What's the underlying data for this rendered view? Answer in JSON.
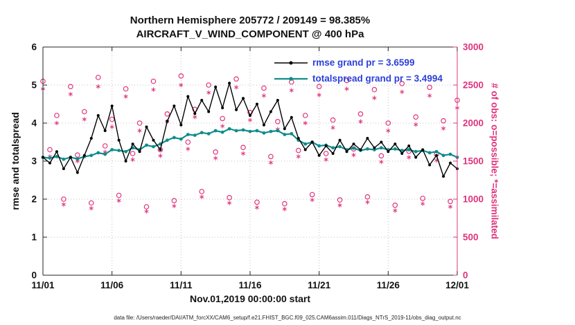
{
  "title": {
    "line1": "Northern Hemisphere 205772 / 209149 = 98.385%",
    "line2": "AIRCRAFT_V_WIND_COMPONENT @ 400 hPa"
  },
  "axes": {
    "left_label": "rmse and totalspread",
    "right_label": "# of obs: o=possible; *=assimilated",
    "x_label": "Nov.01,2019 00:00:00 start",
    "x_tick_labels": [
      "11/01",
      "11/06",
      "11/11",
      "11/16",
      "11/21",
      "11/26",
      "12/01"
    ],
    "x_tick_values": [
      0,
      5,
      10,
      15,
      20,
      25,
      30
    ],
    "left_ticks": [
      0,
      1,
      2,
      3,
      4,
      5,
      6
    ],
    "right_ticks": [
      0,
      500,
      1000,
      1500,
      2000,
      2500,
      3000
    ]
  },
  "legend": {
    "items": [
      {
        "label": "rmse grand pr = 3.6599",
        "series": "rmse"
      },
      {
        "label": "totalspread grand pr = 3.4994",
        "series": "totalspread"
      }
    ]
  },
  "caption": "data file: /Users/raeder/DAI/ATM_forcXX/CAM6_setup/f.e21.FHIST_BGC.f09_025.CAM6assim.011/Diags_NTrS_2019-11/obs_diag_output.nc",
  "colors": {
    "rmse": "#000000",
    "totalspread": "#108b8b",
    "obs": "#e0337c",
    "legend_text": "#2b3fd9",
    "grid": "#c0c0c0",
    "axis": "#222222"
  },
  "chart_data": {
    "type": "line",
    "title": "Northern Hemisphere 205772 / 209149 = 98.385% | AIRCRAFT_V_WIND_COMPONENT @ 400 hPa",
    "xlabel": "Nov.01,2019 00:00:00 start",
    "ylabel_left": "rmse and totalspread",
    "ylabel_right": "# of obs: o=possible; *=assimilated",
    "x_range_days": [
      0,
      30
    ],
    "left_ylim": [
      0,
      6
    ],
    "right_ylim": [
      0,
      3000
    ],
    "grid": true,
    "legend_position": "top-center-inside",
    "x_days": [
      0,
      0.5,
      1,
      1.5,
      2,
      2.5,
      3,
      3.5,
      4,
      4.5,
      5,
      5.5,
      6,
      6.5,
      7,
      7.5,
      8,
      8.5,
      9,
      9.5,
      10,
      10.5,
      11,
      11.5,
      12,
      12.5,
      13,
      13.5,
      14,
      14.5,
      15,
      15.5,
      16,
      16.5,
      17,
      17.5,
      18,
      18.5,
      19,
      19.5,
      20,
      20.5,
      21,
      21.5,
      22,
      22.5,
      23,
      23.5,
      24,
      24.5,
      25,
      25.5,
      26,
      26.5,
      27,
      27.5,
      28,
      28.5,
      29,
      29.5,
      30
    ],
    "series": [
      {
        "name": "rmse",
        "axis": "left",
        "marker": "dot",
        "grand_mean": 3.6599,
        "values": [
          3.1,
          2.95,
          3.25,
          2.8,
          3.1,
          2.7,
          3.15,
          3.6,
          4.2,
          3.8,
          4.45,
          3.55,
          3.0,
          3.45,
          3.25,
          3.9,
          3.55,
          3.3,
          4.05,
          4.45,
          3.95,
          4.7,
          4.25,
          4.6,
          4.3,
          4.95,
          4.4,
          5.05,
          4.35,
          4.65,
          4.2,
          4.5,
          3.95,
          4.3,
          4.6,
          3.85,
          4.15,
          3.6,
          3.3,
          3.5,
          3.15,
          3.4,
          3.2,
          3.55,
          3.25,
          3.45,
          3.3,
          3.6,
          3.35,
          3.5,
          3.25,
          3.45,
          3.2,
          3.4,
          3.1,
          3.3,
          2.9,
          3.15,
          2.6,
          2.95,
          2.8
        ]
      },
      {
        "name": "totalspread",
        "axis": "left",
        "marker": "dot",
        "grand_mean": 3.4994,
        "values": [
          3.1,
          3.08,
          3.12,
          3.05,
          3.1,
          3.06,
          3.12,
          3.15,
          3.22,
          3.18,
          3.3,
          3.28,
          3.25,
          3.35,
          3.3,
          3.42,
          3.38,
          3.45,
          3.55,
          3.62,
          3.58,
          3.7,
          3.68,
          3.75,
          3.72,
          3.8,
          3.76,
          3.85,
          3.8,
          3.82,
          3.78,
          3.8,
          3.74,
          3.78,
          3.8,
          3.7,
          3.72,
          3.55,
          3.45,
          3.5,
          3.4,
          3.42,
          3.35,
          3.38,
          3.3,
          3.34,
          3.28,
          3.32,
          3.3,
          3.35,
          3.3,
          3.32,
          3.28,
          3.3,
          3.25,
          3.28,
          3.22,
          3.25,
          3.15,
          3.18,
          3.1
        ]
      },
      {
        "name": "possible_obs",
        "axis": "right",
        "marker": "circle",
        "values": [
          2550,
          1650,
          2100,
          1000,
          2480,
          1580,
          2150,
          950,
          2600,
          1700,
          2050,
          1050,
          2450,
          1600,
          2000,
          900,
          2550,
          1650,
          2120,
          980,
          2620,
          1750,
          2180,
          1100,
          2500,
          1620,
          2060,
          1020,
          2580,
          1680,
          2140,
          960,
          2460,
          1560,
          2020,
          940,
          2540,
          1640,
          2100,
          1060,
          2480,
          1600,
          2040,
          990,
          2560,
          1660,
          2120,
          1030,
          2440,
          1570,
          2000,
          920,
          2520,
          1630,
          2080,
          1010,
          2470,
          1590,
          2030,
          970,
          2300
        ]
      },
      {
        "name": "assimilated_obs",
        "axis": "right",
        "marker": "asterisk",
        "values": [
          2450,
          1560,
          2000,
          930,
          2380,
          1500,
          2050,
          880,
          2480,
          1620,
          1950,
          980,
          2350,
          1520,
          1900,
          840,
          2440,
          1570,
          2020,
          910,
          2500,
          1660,
          2080,
          1030,
          2400,
          1540,
          1960,
          950,
          2470,
          1600,
          2040,
          890,
          2360,
          1480,
          1920,
          870,
          2430,
          1560,
          2000,
          990,
          2370,
          1520,
          1940,
          920,
          2450,
          1580,
          2020,
          960,
          2330,
          1490,
          1900,
          850,
          2410,
          1550,
          1980,
          940,
          2360,
          1510,
          1930,
          900,
          2200
        ]
      }
    ]
  }
}
